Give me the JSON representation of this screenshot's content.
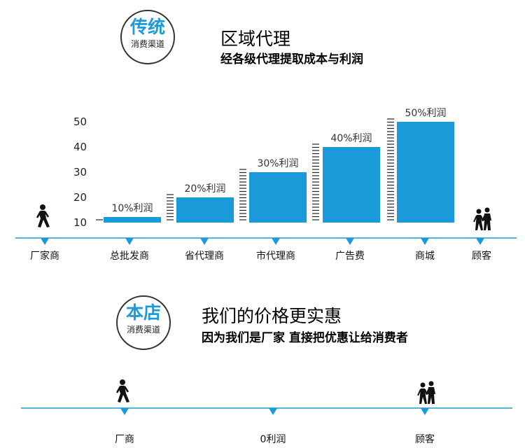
{
  "traditional": {
    "badge_main": "传统",
    "badge_sub": "消费渠道",
    "title": "区域代理",
    "subtitle": "经各级代理提取成本与利润"
  },
  "store": {
    "badge_main": "本店",
    "badge_sub": "消费渠道",
    "title": "我们的价格更实惠",
    "subtitle": "因为我们是厂家  直接把优惠让给消费者"
  },
  "chart_data": {
    "type": "bar",
    "categories": [
      "总批发商",
      "省代理商",
      "市代理商",
      "广告费",
      "商城"
    ],
    "values": [
      10,
      20,
      30,
      40,
      50
    ],
    "bar_labels": [
      "10%利润",
      "20%利润",
      "30%利润",
      "40%利润",
      "50%利润"
    ],
    "yticks": [
      "10",
      "20",
      "30",
      "40",
      "50"
    ],
    "ylim": [
      10,
      50
    ],
    "timeline_start": "厂家商",
    "timeline_end": "顾客",
    "bar_color": "#1a9ad9"
  },
  "bottom_timeline": {
    "labels": [
      "厂商",
      "0利润",
      "顾客"
    ]
  },
  "colors": {
    "accent": "#1a9ad9",
    "marker": "#1a9ad9"
  },
  "icons": {
    "walker": "walking-person-icon",
    "couple": "walking-couple-icon"
  }
}
